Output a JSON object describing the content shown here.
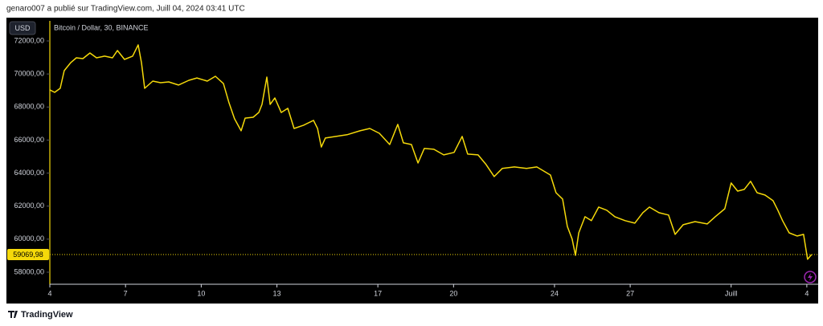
{
  "header": "genaro007 a publié sur TradingView.com, Juill 04, 2024 03:41 UTC",
  "currency_button": "USD",
  "footer": "TradingView",
  "chart_data": {
    "type": "line",
    "title": "Bitcoin / Dollar, 30, BINANCE",
    "x": [
      0,
      0.19,
      0.41,
      0.57,
      0.83,
      1.05,
      1.31,
      1.59,
      1.85,
      2.17,
      2.48,
      2.68,
      2.96,
      3.28,
      3.5,
      3.63,
      3.76,
      4.08,
      4.39,
      4.71,
      5.1,
      5.51,
      5.83,
      6.24,
      6.56,
      6.88,
      7.1,
      7.32,
      7.58,
      7.74,
      8.06,
      8.28,
      8.41,
      8.6,
      8.73,
      8.92,
      9.17,
      9.43,
      9.68,
      10.06,
      10.45,
      10.61,
      10.76,
      10.92,
      11.34,
      11.78,
      12.29,
      12.68,
      13.06,
      13.47,
      13.79,
      14.01,
      14.33,
      14.59,
      14.84,
      15.22,
      15.61,
      16.02,
      16.34,
      16.56,
      16.97,
      17.29,
      17.61,
      17.93,
      18.41,
      18.89,
      19.3,
      19.84,
      20.06,
      20.32,
      20.51,
      20.7,
      20.83,
      20.96,
      21.21,
      21.46,
      21.75,
      22.07,
      22.39,
      22.8,
      23.18,
      23.5,
      23.76,
      24.14,
      24.52,
      24.78,
      25.1,
      25.57,
      26.05,
      26.37,
      26.75,
      27,
      27.26,
      27.52,
      27.77,
      28.03,
      28.34,
      28.66,
      28.85,
      29.04,
      29.3,
      29.62,
      29.87,
      30.03,
      30.19
    ],
    "series": [
      {
        "name": "Bitcoin / Dollar",
        "color": "#f5d90a",
        "values": [
          69040,
          68890,
          69130,
          70200,
          70690,
          70980,
          70930,
          71270,
          70980,
          71080,
          70980,
          71420,
          70880,
          71080,
          71760,
          70690,
          69130,
          69570,
          69470,
          69520,
          69330,
          69620,
          69760,
          69570,
          69860,
          69420,
          68260,
          67290,
          66560,
          67330,
          67380,
          67670,
          68160,
          69810,
          68160,
          68550,
          67670,
          67920,
          66700,
          66900,
          67190,
          66700,
          65580,
          66120,
          66220,
          66320,
          66560,
          66700,
          66410,
          65730,
          66950,
          65830,
          65730,
          64610,
          65490,
          65440,
          65100,
          65250,
          66220,
          65150,
          65100,
          64520,
          63790,
          64280,
          64370,
          64280,
          64370,
          63880,
          62810,
          62430,
          60770,
          60000,
          59020,
          60380,
          61360,
          61120,
          61940,
          61750,
          61360,
          61120,
          60970,
          61600,
          61940,
          61600,
          61460,
          60290,
          60870,
          61060,
          60920,
          61360,
          61840,
          63400,
          62910,
          63010,
          63500,
          62810,
          62670,
          62330,
          61750,
          61120,
          60380,
          60190,
          60290,
          58780,
          59070
        ]
      }
    ],
    "last_price": {
      "value": 59069.98,
      "label": "59069,98"
    },
    "xlim": [
      0,
      30.45
    ],
    "xticks": [
      {
        "value": 0,
        "label": "4"
      },
      {
        "value": 3,
        "label": "7"
      },
      {
        "value": 6,
        "label": "10"
      },
      {
        "value": 9,
        "label": "13"
      },
      {
        "value": 13,
        "label": "17"
      },
      {
        "value": 16,
        "label": "20"
      },
      {
        "value": 20,
        "label": "24"
      },
      {
        "value": 23,
        "label": "27"
      },
      {
        "value": 27,
        "label": "Juill"
      },
      {
        "value": 30,
        "label": "4"
      }
    ],
    "ylim": [
      57270,
      73215
    ],
    "yticks": [
      {
        "value": 58000,
        "label": "58000,00"
      },
      {
        "value": 60000,
        "label": "60000,00"
      },
      {
        "value": 62000,
        "label": "62000,00"
      },
      {
        "value": 64000,
        "label": "64000,00"
      },
      {
        "value": 66000,
        "label": "66000,00"
      },
      {
        "value": 68000,
        "label": "68000,00"
      },
      {
        "value": 70000,
        "label": "70000,00"
      },
      {
        "value": 72000,
        "label": "72000,00"
      }
    ],
    "grid": false
  }
}
